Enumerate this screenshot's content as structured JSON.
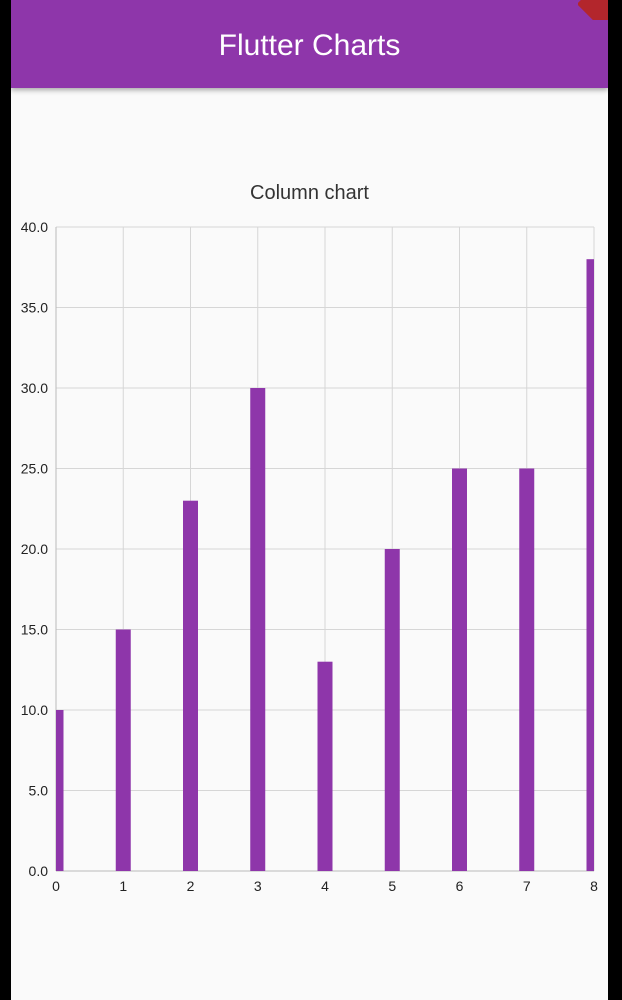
{
  "app": {
    "title": "Flutter Charts"
  },
  "colors": {
    "appbar": "#8e36aa",
    "bar": "#8e36aa",
    "background": "#fafafa",
    "gridline": "#d6d6d6"
  },
  "chart_data": {
    "type": "bar",
    "title": "Column chart",
    "categories": [
      "0",
      "1",
      "2",
      "3",
      "4",
      "5",
      "6",
      "7",
      "8"
    ],
    "values": [
      10,
      15,
      23,
      30,
      13,
      20,
      25,
      25,
      38
    ],
    "ylim": [
      0,
      40
    ],
    "yticks": [
      "0.0",
      "5.0",
      "10.0",
      "15.0",
      "20.0",
      "25.0",
      "30.0",
      "35.0",
      "40.0"
    ],
    "xlabel": "",
    "ylabel": "",
    "grid": true,
    "legend": "none"
  }
}
